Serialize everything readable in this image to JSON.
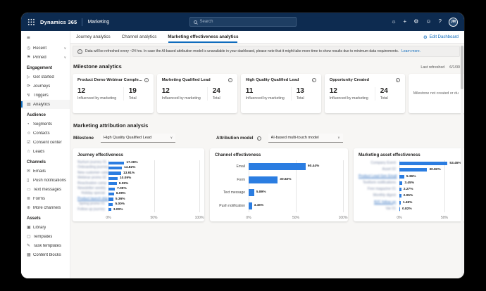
{
  "colors": {
    "topbar_bg": "#0d2b50",
    "accent": "#0f6cbd",
    "bar_blue": "#2b7de1"
  },
  "app": {
    "brand": "Dynamics 365",
    "area": "Marketing",
    "avatar_initials": "JM"
  },
  "search": {
    "placeholder": "Search"
  },
  "topbar_icons": [
    {
      "name": "lightbulb-icon",
      "glyph": "☼"
    },
    {
      "name": "plus-icon",
      "glyph": "+"
    },
    {
      "name": "settings-gear-icon",
      "glyph": "⚙"
    },
    {
      "name": "feedback-smiley-icon",
      "glyph": "☺"
    },
    {
      "name": "help-question-icon",
      "glyph": "?"
    }
  ],
  "tabs": [
    {
      "label": "Journey analytics",
      "active": false
    },
    {
      "label": "Channel analytics",
      "active": false
    },
    {
      "label": "Marketing effectiveness analytics",
      "active": true
    }
  ],
  "edit_dashboard": {
    "label": "Edit Dashboard",
    "icon": "gear-icon",
    "glyph": "⚙"
  },
  "banner": {
    "icon": "info-icon",
    "text": "Data will be refreshed every ~24 hrs. In case the AI-based attribution model is unavailable in your dashboard, please note that it might take more time to show results due to minimum data requirements.",
    "link": "Learn more."
  },
  "sidebar": {
    "items": [
      {
        "type": "item",
        "label": "Recent",
        "icon": "clock-icon",
        "glyph": "◷",
        "chevron": true
      },
      {
        "type": "item",
        "label": "Pinned",
        "icon": "pin-icon",
        "glyph": "⚑",
        "chevron": true
      },
      {
        "type": "header",
        "label": "Engagement"
      },
      {
        "type": "item",
        "label": "Get started",
        "icon": "get-started-icon",
        "glyph": "▷"
      },
      {
        "type": "item",
        "label": "Journeys",
        "icon": "journeys-icon",
        "glyph": "⟳"
      },
      {
        "type": "item",
        "label": "Triggers",
        "icon": "triggers-icon",
        "glyph": "↯"
      },
      {
        "type": "item",
        "label": "Analytics",
        "icon": "analytics-icon",
        "glyph": "▤",
        "active": true
      },
      {
        "type": "header",
        "label": "Audience"
      },
      {
        "type": "item",
        "label": "Segments",
        "icon": "segments-icon",
        "glyph": "◔"
      },
      {
        "type": "item",
        "label": "Contacts",
        "icon": "contacts-icon",
        "glyph": "☺"
      },
      {
        "type": "item",
        "label": "Consent center",
        "icon": "consent-center-icon",
        "glyph": "☑"
      },
      {
        "type": "item",
        "label": "Leads",
        "icon": "leads-icon",
        "glyph": "☆"
      },
      {
        "type": "header",
        "label": "Channels"
      },
      {
        "type": "item",
        "label": "Emails",
        "icon": "email-icon",
        "glyph": "✉"
      },
      {
        "type": "item",
        "label": "Push notifications",
        "icon": "push-notifications-icon",
        "glyph": "▯"
      },
      {
        "type": "item",
        "label": "Text messages",
        "icon": "text-messages-icon",
        "glyph": "▭"
      },
      {
        "type": "item",
        "label": "Forms",
        "icon": "forms-icon",
        "glyph": "≣"
      },
      {
        "type": "item",
        "label": "More channels",
        "icon": "more-channels-icon",
        "glyph": "⊕"
      },
      {
        "type": "header",
        "label": "Assets"
      },
      {
        "type": "item",
        "label": "Library",
        "icon": "library-icon",
        "glyph": "▣"
      },
      {
        "type": "item",
        "label": "Templates",
        "icon": "templates-icon",
        "glyph": "▢"
      },
      {
        "type": "item",
        "label": "Task templates",
        "icon": "task-templates-icon",
        "glyph": "✎"
      },
      {
        "type": "item",
        "label": "Content blocks",
        "icon": "content-blocks-icon",
        "glyph": "▦"
      }
    ]
  },
  "milestone_section": {
    "title": "Milestone analytics",
    "last_refreshed_label": "Last refreshed",
    "last_refreshed_value": "6/1/00"
  },
  "milestone_labels": {
    "influenced": "Influenced by marketing",
    "total": "Total"
  },
  "milestone_cards": [
    {
      "title": "Product Demo Webinar Comple...",
      "influenced": "12",
      "total": "19"
    },
    {
      "title": "Marketing Qualified Lead",
      "influenced": "12",
      "total": "24"
    },
    {
      "title": "High Quality Qualified Lead",
      "influenced": "11",
      "total": "13"
    },
    {
      "title": "Opportunity Created",
      "influenced": "12",
      "total": "24"
    },
    {
      "empty_text": "Milestone not created or du"
    }
  ],
  "attribution": {
    "title": "Marketing attribution analysis",
    "milestone_label": "Milestone",
    "milestone_value": "High Quality Qualified Lead",
    "model_label": "Attribution model",
    "model_value": "AI-based multi-touch model"
  },
  "chart_data": [
    {
      "type": "bar",
      "orientation": "horizontal",
      "title": "Journey effectiveness",
      "xlim": [
        0,
        100
      ],
      "x_ticks": [
        "0%",
        "50%",
        "100%"
      ],
      "grid": true,
      "redacted_labels": true,
      "link_rows": [
        7
      ],
      "categories": [
        "Nurture journey 01",
        "Onboarding journey",
        "New customer campai",
        "Webinar promo 02",
        "Reactivation camp",
        "Newsletter weekly",
        "Holiday special",
        "Product launch drip 01",
        "Spring promo 01",
        "Follow up journey"
      ],
      "values": [
        17.36,
        14.82,
        13.91,
        10.09,
        9.09,
        7.09,
        6.09,
        5.36,
        5.0,
        3.0
      ],
      "value_suffix": "%"
    },
    {
      "type": "bar",
      "orientation": "horizontal",
      "title": "Channel effectiveness",
      "xlim": [
        0,
        100
      ],
      "x_ticks": [
        "0%",
        "50%",
        "100%"
      ],
      "grid": true,
      "redacted_labels": false,
      "categories": [
        "Email",
        "Form",
        "Text message",
        "Push notification"
      ],
      "values": [
        60.44,
        30.82,
        5.89,
        3.45
      ],
      "value_suffix": "%"
    },
    {
      "type": "bar",
      "orientation": "horizontal",
      "title": "Marketing asset effectiveness",
      "xlim": [
        0,
        100
      ],
      "x_ticks": [
        "0%",
        "50%",
        "100%"
      ],
      "grid": true,
      "redacted_labels": true,
      "link_rows": [
        2,
        6
      ],
      "categories": [
        "Company Event",
        "Asset 02",
        "Product Lead Gen Email",
        "Textform notifications",
        "Free magazine 01",
        "Monthly digest",
        "B2C follow up",
        "Var 01"
      ],
      "values": [
        53.45,
        30.82,
        5.36,
        3.45,
        2.27,
        2.05,
        1.45,
        0.82
      ],
      "value_suffix": "%"
    }
  ]
}
